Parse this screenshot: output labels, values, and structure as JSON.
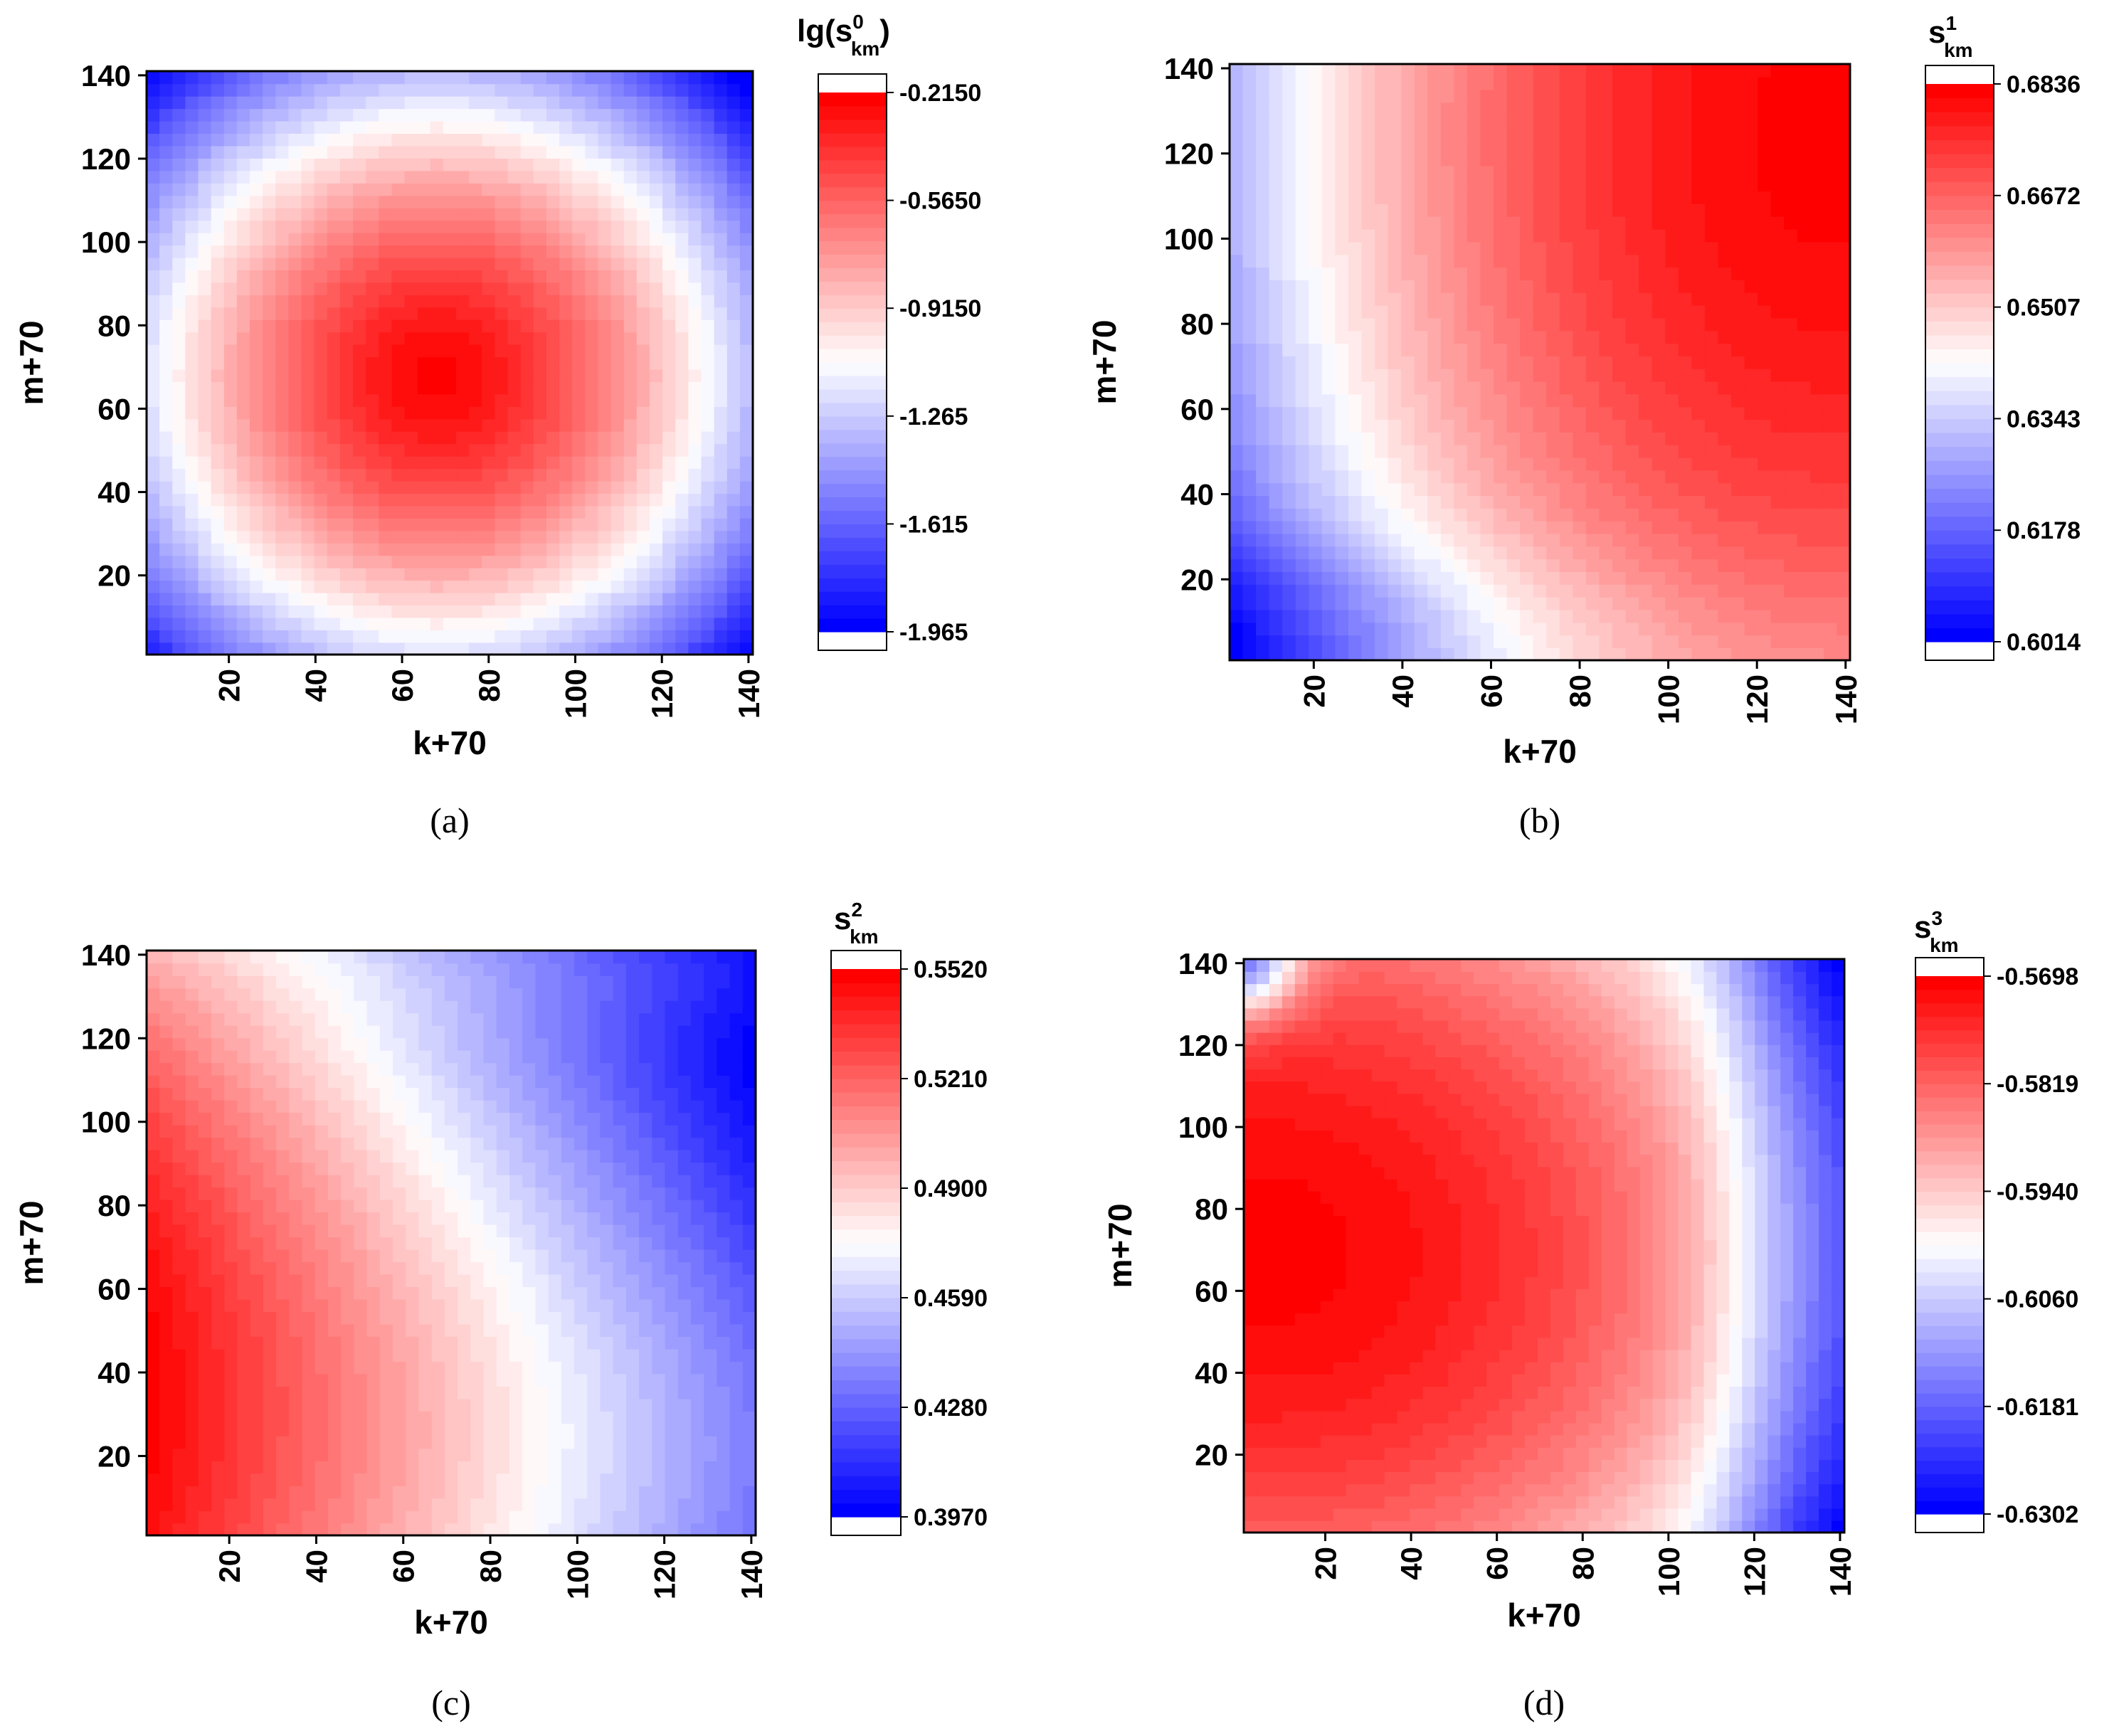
{
  "chart_data": [
    {
      "type": "heatmap",
      "panel_label": "(a)",
      "xlabel": "k+70",
      "ylabel": "m+70",
      "xlim": [
        1,
        141
      ],
      "ylim": [
        1,
        141
      ],
      "xticks": [
        "20",
        "40",
        "60",
        "80",
        "100",
        "120",
        "140"
      ],
      "yticks": [
        "20",
        "40",
        "60",
        "80",
        "100",
        "120",
        "140"
      ],
      "colorbar": {
        "title_main": "lg(s",
        "title_sup": "0",
        "title_sub": "km",
        "title_close": ")",
        "ticks": [
          "-0.2150",
          "-0.5650",
          "-0.9150",
          "-1.265",
          "-1.615",
          "-1.965"
        ],
        "min": -1.965,
        "max": -0.215,
        "levels": 40
      },
      "field": "centered peak at (k+70, m+70) ≈ (68, 68), falling toward corners",
      "colors": {
        "low": "#0000ff",
        "mid": "#ffffff",
        "high": "#ff0000"
      }
    },
    {
      "type": "heatmap",
      "panel_label": "(b)",
      "xlabel": "k+70",
      "ylabel": "m+70",
      "xlim": [
        1,
        141
      ],
      "ylim": [
        1,
        141
      ],
      "xticks": [
        "20",
        "40",
        "60",
        "80",
        "100",
        "120",
        "140"
      ],
      "yticks": [
        "20",
        "40",
        "60",
        "80",
        "100",
        "120",
        "140"
      ],
      "colorbar": {
        "title_main": "s",
        "title_sup": "1",
        "title_sub": "km",
        "title_close": "",
        "ticks": [
          "0.6836",
          "0.6672",
          "0.6507",
          "0.6343",
          "0.6178",
          "0.6014"
        ],
        "min": 0.6014,
        "max": 0.6836,
        "levels": 40
      },
      "field": "minimum at lower-left corner, maximum near upper-right (k+70≈140, m+70≈125)",
      "colors": {
        "low": "#0000ff",
        "mid": "#ffffff",
        "high": "#ff0000"
      }
    },
    {
      "type": "heatmap",
      "panel_label": "(c)",
      "xlabel": "k+70",
      "ylabel": "m+70",
      "xlim": [
        1,
        141
      ],
      "ylim": [
        1,
        141
      ],
      "xticks": [
        "20",
        "40",
        "60",
        "80",
        "100",
        "120",
        "140"
      ],
      "yticks": [
        "20",
        "40",
        "60",
        "80",
        "100",
        "120",
        "140"
      ],
      "colorbar": {
        "title_main": "s",
        "title_sup": "2",
        "title_sub": "km",
        "title_close": "",
        "ticks": [
          "0.5520",
          "0.5210",
          "0.4900",
          "0.4590",
          "0.4280",
          "0.3970"
        ],
        "min": 0.397,
        "max": 0.552,
        "levels": 40
      },
      "field": "maximum on left edge near m+70≈35, minimum on right edge near m+70≈90",
      "colors": {
        "low": "#0000ff",
        "mid": "#ffffff",
        "high": "#ff0000"
      }
    },
    {
      "type": "heatmap",
      "panel_label": "(d)",
      "xlabel": "k+70",
      "ylabel": "m+70",
      "xlim": [
        1,
        141
      ],
      "ylim": [
        1,
        141
      ],
      "xticks": [
        "20",
        "40",
        "60",
        "80",
        "100",
        "120",
        "140"
      ],
      "yticks": [
        "20",
        "40",
        "60",
        "80",
        "100",
        "120",
        "140"
      ],
      "colorbar": {
        "title_main": "s",
        "title_sup": "3",
        "title_sub": "km",
        "title_close": "",
        "ticks": [
          "-0.5698",
          "-0.5819",
          "-0.5940",
          "-0.6060",
          "-0.6181",
          "-0.6302"
        ],
        "min": -0.6302,
        "max": -0.5698,
        "levels": 40
      },
      "field": "maximum on left edge near m+70≈70, minimum along right edge, small blue top-left corner",
      "colors": {
        "low": "#0000ff",
        "mid": "#ffffff",
        "high": "#ff0000"
      }
    }
  ]
}
